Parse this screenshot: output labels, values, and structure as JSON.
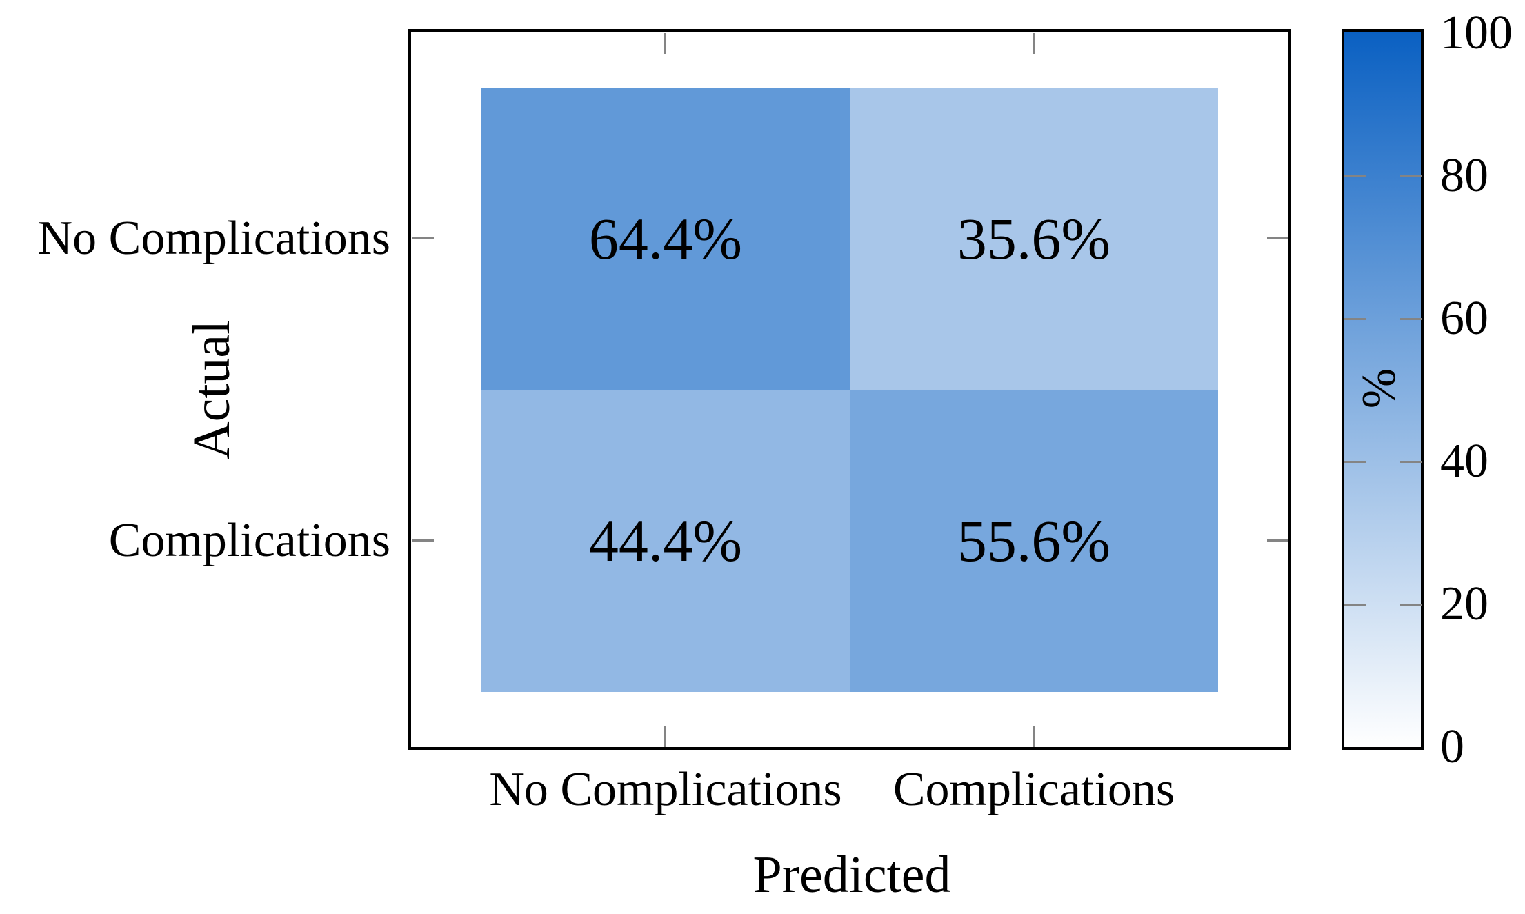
{
  "style": {
    "background": "#FFFFFF",
    "axis_border_color": "#000000",
    "tick_color": "#848484",
    "text_color": "#000000"
  },
  "chart_data": {
    "type": "heatmap",
    "title": "",
    "xlabel": "Predicted",
    "ylabel": "Actual",
    "x_categories": [
      "No Complications",
      "Complications"
    ],
    "y_categories": [
      "No Complications",
      "Complications"
    ],
    "values": [
      [
        64.4,
        35.6
      ],
      [
        44.4,
        55.6
      ]
    ],
    "cell_labels": [
      [
        "64.4%",
        "35.6%"
      ],
      [
        "44.4%",
        "55.6%"
      ]
    ],
    "value_unit": "%",
    "grid": false,
    "colorbar": {
      "label": "%",
      "min": 0,
      "max": 100,
      "tick_values": [
        0,
        20,
        40,
        60,
        80,
        100
      ],
      "tick_labels": [
        "0",
        "20",
        "40",
        "60",
        "80",
        "100"
      ],
      "color_min": "#FFFFFF",
      "color_max": "#0A60C2",
      "position": "right"
    }
  }
}
